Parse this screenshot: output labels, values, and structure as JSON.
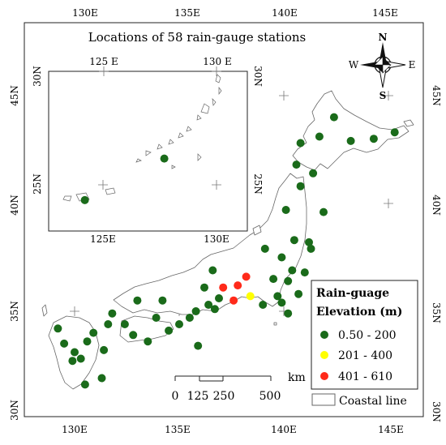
{
  "title": "Locations of 58 rain-gauge stations",
  "lon_labels_top": [
    "130E",
    "135E",
    "140E",
    "145E"
  ],
  "lon_labels_bottom": [
    "130E",
    "135E",
    "140E",
    "145E"
  ],
  "lat_labels_left": [
    "45N",
    "40N",
    "35N",
    "30N"
  ],
  "lat_labels_right": [
    "45N",
    "40N",
    "35N",
    "30N"
  ],
  "inset": {
    "lon_labels_top": [
      "125 E",
      "130 E"
    ],
    "lon_labels_bottom": [
      "125E",
      "130E"
    ],
    "lat_labels_left": [
      "30N",
      "25N"
    ],
    "lat_labels_right": [
      "30N",
      "25N"
    ]
  },
  "compass": {
    "north": "N",
    "south": "S",
    "east": "E",
    "west": "W"
  },
  "scale_bar": {
    "unit": "km",
    "labels": [
      "0",
      "125",
      "250",
      "500"
    ]
  },
  "legend": {
    "title_line1": "Rain-guage",
    "title_line2": "Elevation (m)",
    "items": [
      {
        "label": "0.50 - 200",
        "color": "#1a6b1a"
      },
      {
        "label": "201 - 400",
        "color": "#ffff00"
      },
      {
        "label": "401 - 610",
        "color": "#ff2a1a"
      }
    ],
    "coastline_label": "Coastal line"
  },
  "stations": [
    {
      "lon": 145.3,
      "lat": 43.3,
      "class": 0
    },
    {
      "lon": 144.3,
      "lat": 43.0,
      "class": 0
    },
    {
      "lon": 142.4,
      "lat": 44.0,
      "class": 0
    },
    {
      "lon": 143.2,
      "lat": 42.9,
      "class": 0
    },
    {
      "lon": 141.7,
      "lat": 43.1,
      "class": 0
    },
    {
      "lon": 140.8,
      "lat": 42.8,
      "class": 0
    },
    {
      "lon": 140.6,
      "lat": 41.8,
      "class": 0
    },
    {
      "lon": 141.4,
      "lat": 41.4,
      "class": 0
    },
    {
      "lon": 140.8,
      "lat": 40.8,
      "class": 0
    },
    {
      "lon": 140.1,
      "lat": 39.7,
      "class": 0
    },
    {
      "lon": 141.9,
      "lat": 39.6,
      "class": 0
    },
    {
      "lon": 140.5,
      "lat": 38.3,
      "class": 0
    },
    {
      "lon": 141.2,
      "lat": 38.2,
      "class": 0
    },
    {
      "lon": 141.3,
      "lat": 37.9,
      "class": 0
    },
    {
      "lon": 139.9,
      "lat": 37.5,
      "class": 0
    },
    {
      "lon": 139.1,
      "lat": 37.9,
      "class": 0
    },
    {
      "lon": 140.4,
      "lat": 36.9,
      "class": 0
    },
    {
      "lon": 141.0,
      "lat": 36.8,
      "class": 0
    },
    {
      "lon": 140.2,
      "lat": 36.4,
      "class": 0
    },
    {
      "lon": 139.5,
      "lat": 36.5,
      "class": 0
    },
    {
      "lon": 138.2,
      "lat": 36.6,
      "class": 2
    },
    {
      "lon": 137.8,
      "lat": 36.2,
      "class": 2
    },
    {
      "lon": 137.1,
      "lat": 36.1,
      "class": 2
    },
    {
      "lon": 137.6,
      "lat": 35.5,
      "class": 2
    },
    {
      "lon": 138.4,
      "lat": 35.7,
      "class": 1
    },
    {
      "lon": 139.7,
      "lat": 35.7,
      "class": 0
    },
    {
      "lon": 139.9,
      "lat": 35.4,
      "class": 0
    },
    {
      "lon": 140.7,
      "lat": 35.8,
      "class": 0
    },
    {
      "lon": 140.2,
      "lat": 34.9,
      "class": 0
    },
    {
      "lon": 139.0,
      "lat": 35.3,
      "class": 0
    },
    {
      "lon": 136.6,
      "lat": 36.9,
      "class": 0
    },
    {
      "lon": 136.2,
      "lat": 36.1,
      "class": 0
    },
    {
      "lon": 136.9,
      "lat": 35.6,
      "class": 0
    },
    {
      "lon": 136.4,
      "lat": 35.3,
      "class": 0
    },
    {
      "lon": 135.8,
      "lat": 35.0,
      "class": 0
    },
    {
      "lon": 136.7,
      "lat": 35.1,
      "class": 0
    },
    {
      "lon": 135.5,
      "lat": 34.7,
      "class": 0
    },
    {
      "lon": 135.0,
      "lat": 34.4,
      "class": 0
    },
    {
      "lon": 134.2,
      "lat": 35.5,
      "class": 0
    },
    {
      "lon": 133.0,
      "lat": 35.5,
      "class": 0
    },
    {
      "lon": 131.8,
      "lat": 34.9,
      "class": 0
    },
    {
      "lon": 132.4,
      "lat": 34.4,
      "class": 0
    },
    {
      "lon": 133.9,
      "lat": 34.7,
      "class": 0
    },
    {
      "lon": 134.5,
      "lat": 34.1,
      "class": 0
    },
    {
      "lon": 133.5,
      "lat": 33.6,
      "class": 0
    },
    {
      "lon": 132.8,
      "lat": 33.9,
      "class": 0
    },
    {
      "lon": 131.6,
      "lat": 34.4,
      "class": 0
    },
    {
      "lon": 130.9,
      "lat": 34.0,
      "class": 0
    },
    {
      "lon": 130.6,
      "lat": 33.6,
      "class": 0
    },
    {
      "lon": 129.5,
      "lat": 33.5,
      "class": 0
    },
    {
      "lon": 130.0,
      "lat": 33.1,
      "class": 0
    },
    {
      "lon": 130.3,
      "lat": 32.8,
      "class": 0
    },
    {
      "lon": 131.4,
      "lat": 33.2,
      "class": 0
    },
    {
      "lon": 131.3,
      "lat": 31.9,
      "class": 0
    },
    {
      "lon": 130.5,
      "lat": 31.6,
      "class": 0
    },
    {
      "lon": 129.9,
      "lat": 32.7,
      "class": 0
    },
    {
      "lon": 129.2,
      "lat": 34.2,
      "class": 0
    },
    {
      "lon": 135.9,
      "lat": 33.4,
      "class": 0
    }
  ],
  "inset_stations": [
    {
      "lon": 127.7,
      "lat": 26.2,
      "class": 0
    },
    {
      "lon": 124.2,
      "lat": 24.3,
      "class": 0
    }
  ]
}
